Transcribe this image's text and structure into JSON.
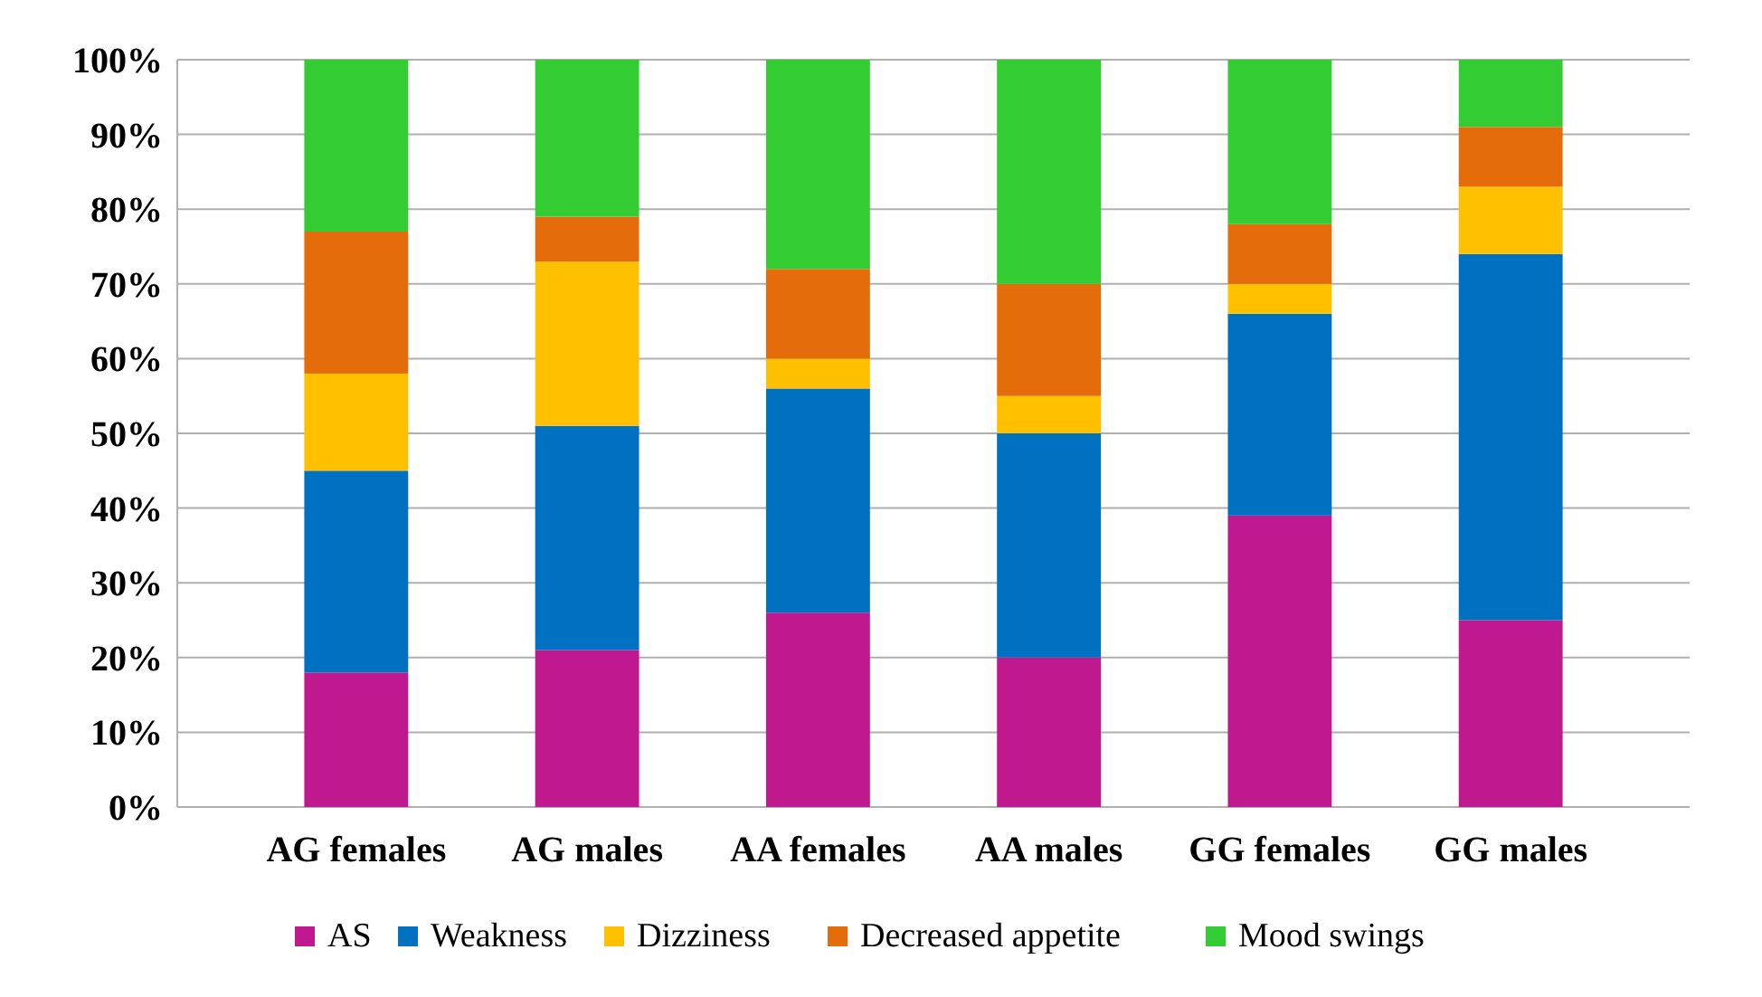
{
  "chart_data": {
    "type": "bar",
    "stacked": true,
    "categories": [
      "AG females",
      "AG males",
      "AA females",
      "AA males",
      "GG females",
      "GG males"
    ],
    "series": [
      {
        "name": "AS",
        "color": "#c0198f",
        "values": [
          18,
          21,
          26,
          20,
          39,
          25
        ]
      },
      {
        "name": "Weakness",
        "color": "#0070c0",
        "values": [
          27,
          30,
          30,
          30,
          27,
          49
        ]
      },
      {
        "name": "Dizziness",
        "color": "#ffc000",
        "values": [
          13,
          22,
          4,
          5,
          4,
          9
        ]
      },
      {
        "name": "Decreased appetite",
        "color": "#e46c0a",
        "values": [
          19,
          6,
          12,
          15,
          8,
          8
        ]
      },
      {
        "name": "Mood swings",
        "color": "#33cc33",
        "values": [
          23,
          21,
          28,
          30,
          22,
          9
        ]
      }
    ],
    "ylim": [
      0,
      100
    ],
    "yticks": [
      {
        "value": 0,
        "label": "0%"
      },
      {
        "value": 10,
        "label": "10%"
      },
      {
        "value": 20,
        "label": "20%"
      },
      {
        "value": 30,
        "label": "30%"
      },
      {
        "value": 40,
        "label": "40%"
      },
      {
        "value": 50,
        "label": "50%"
      },
      {
        "value": 60,
        "label": "60%"
      },
      {
        "value": 70,
        "label": "70%"
      },
      {
        "value": 80,
        "label": "80%"
      },
      {
        "value": 90,
        "label": "90%"
      },
      {
        "value": 100,
        "label": "100%"
      }
    ],
    "grid": true,
    "legend": "bottom"
  }
}
